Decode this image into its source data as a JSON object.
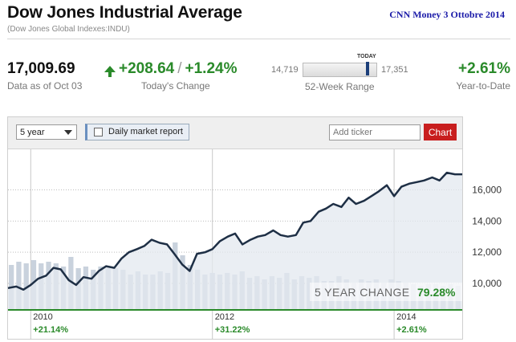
{
  "header": {
    "title": "Dow Jones Industrial Average",
    "subtitle": "(Dow Jones Global Indexes:INDU)",
    "source": "CNN Money  3 Ottobre 2014"
  },
  "quote": {
    "price": "17,009.69",
    "price_date": "Data as of Oct 03",
    "change": "+208.64",
    "separator": "/",
    "change_pct": "+1.24%",
    "change_label": "Today's Change",
    "range_low": "14,719",
    "range_high": "17,351",
    "range_today": "TODAY",
    "range_label": "52-Week Range",
    "range_position": 0.87,
    "ytd": "+2.61%",
    "ytd_label": "Year-to-Date"
  },
  "toolbar": {
    "period": "5 year",
    "daily_report": "Daily market report",
    "ticker_placeholder": "Add ticker",
    "chart_button": "Chart"
  },
  "colors": {
    "up": "#2a8a2a",
    "line": "#1e2f45",
    "area": "#e3e8ef",
    "volume": "#c9d2dd",
    "button": "#c81e1e"
  },
  "chart_data": {
    "type": "area",
    "title": "",
    "x_range": [
      2009.75,
      2014.75
    ],
    "ylim": [
      8300,
      18600
    ],
    "y_ticks": [
      "16,000",
      "14,000",
      "12,000",
      "10,000"
    ],
    "y_tick_values": [
      16000,
      14000,
      12000,
      10000
    ],
    "x_ticks": [
      "2010",
      "2012",
      "2014"
    ],
    "x_tick_values": [
      2010.0,
      2012.0,
      2014.0
    ],
    "x": [
      2009.75,
      2009.84,
      2009.92,
      2010.0,
      2010.08,
      2010.17,
      2010.25,
      2010.33,
      2010.42,
      2010.5,
      2010.58,
      2010.67,
      2010.75,
      2010.83,
      2010.92,
      2011.0,
      2011.08,
      2011.17,
      2011.25,
      2011.33,
      2011.42,
      2011.5,
      2011.58,
      2011.67,
      2011.75,
      2011.83,
      2011.92,
      2012.0,
      2012.08,
      2012.17,
      2012.25,
      2012.33,
      2012.42,
      2012.5,
      2012.58,
      2012.67,
      2012.75,
      2012.83,
      2012.92,
      2013.0,
      2013.08,
      2013.17,
      2013.25,
      2013.33,
      2013.42,
      2013.5,
      2013.58,
      2013.67,
      2013.75,
      2013.83,
      2013.92,
      2014.0,
      2014.08,
      2014.17,
      2014.25,
      2014.33,
      2014.42,
      2014.5,
      2014.58,
      2014.67,
      2014.75
    ],
    "y": [
      9700,
      9800,
      9600,
      9900,
      10300,
      10500,
      11000,
      10900,
      10200,
      9900,
      10400,
      10300,
      10800,
      11100,
      11000,
      11600,
      12000,
      12200,
      12400,
      12800,
      12600,
      12500,
      11900,
      11200,
      10800,
      11900,
      12000,
      12200,
      12700,
      13000,
      13200,
      12500,
      12800,
      13000,
      13100,
      13400,
      13100,
      13000,
      13100,
      13900,
      14000,
      14600,
      14800,
      15100,
      14900,
      15500,
      15100,
      15300,
      15600,
      15900,
      16300,
      15600,
      16200,
      16400,
      16500,
      16600,
      16800,
      16600,
      17100,
      17000,
      17000
    ],
    "volume_pct": [
      0.28,
      0.3,
      0.29,
      0.31,
      0.29,
      0.3,
      0.29,
      0.27,
      0.33,
      0.26,
      0.27,
      0.25,
      0.27,
      0.26,
      0.26,
      0.25,
      0.22,
      0.24,
      0.22,
      0.22,
      0.24,
      0.23,
      0.42,
      0.34,
      0.28,
      0.25,
      0.22,
      0.23,
      0.22,
      0.23,
      0.22,
      0.24,
      0.2,
      0.21,
      0.19,
      0.21,
      0.2,
      0.23,
      0.19,
      0.21,
      0.2,
      0.21,
      0.18,
      0.18,
      0.21,
      0.19,
      0.17,
      0.19,
      0.18,
      0.19,
      0.17,
      0.19,
      0.18,
      0.17,
      0.16,
      0.15,
      0.16,
      0.16,
      0.15,
      0.16,
      0.15
    ],
    "change_label": "5 YEAR CHANGE",
    "change_value": "79.28%",
    "year_changes": [
      {
        "year": 2010.0,
        "label": "+21.14%"
      },
      {
        "year": 2012.0,
        "label": "+31.22%"
      },
      {
        "year": 2014.0,
        "label": "+2.61%"
      }
    ],
    "grid": true
  }
}
